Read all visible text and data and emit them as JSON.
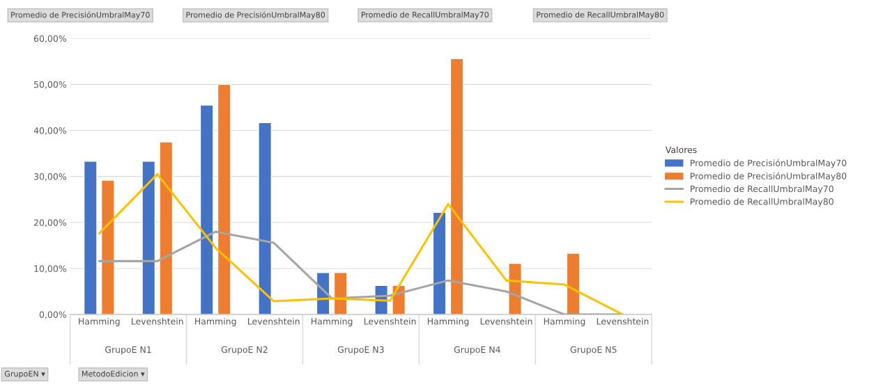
{
  "chart_data": {
    "type": "bar",
    "categories": [
      "Hamming",
      "Levenshtein",
      "Hamming",
      "Levenshtein",
      "Hamming",
      "Levenshtein",
      "Hamming",
      "Levenshtein",
      "Hamming",
      "Levenshtein"
    ],
    "series": [
      {
        "name": "Promedio de PrecisiónUmbralMay70",
        "color": "#4472c4",
        "values": [
          33.3,
          33.3,
          45.5,
          41.7,
          9.1,
          6.3,
          22.2,
          null,
          null,
          null
        ]
      },
      {
        "name": "Promedio de PrecisiónUmbralMay80",
        "color": "#ed7d31",
        "values": [
          29.2,
          37.5,
          50.0,
          null,
          9.1,
          6.3,
          55.6,
          11.1,
          13.3,
          null
        ]
      },
      {
        "name": "Promedio de RecallUmbralMay70",
        "color": "#a5a5a5",
        "type": "line",
        "values": [
          11.6,
          11.6,
          18.0,
          15.6,
          3.5,
          4.1,
          7.4,
          5.0,
          0,
          0
        ]
      },
      {
        "name": "Promedio de RecallUmbralMay80",
        "color": "#ffc000",
        "type": "line",
        "values": [
          17.6,
          30.5,
          14.5,
          2.9,
          3.5,
          3.0,
          24.0,
          7.4,
          6.5,
          0
        ]
      }
    ],
    "ylim": [
      0,
      60
    ],
    "yticks": [
      {
        "value": 0,
        "label": "0,00%"
      },
      {
        "value": 10,
        "label": "10,00%"
      },
      {
        "value": 20,
        "label": "20,00%"
      },
      {
        "value": 30,
        "label": "30,00%"
      },
      {
        "value": 40,
        "label": "40,00%"
      },
      {
        "value": 50,
        "label": "50,00%"
      },
      {
        "value": 60,
        "label": "60,00%"
      }
    ],
    "grid": "y",
    "legend": "right",
    "legend_title": "Valores",
    "annotations": [
      "Promedio de PrecisiónUmbralMay70",
      "Promedio de PrecisiónUmbralMay80",
      "Promedio de RecallUmbralMay70",
      "Promedio de RecallUmbralMay80",
      "GrupoE N1",
      "GrupoE N2",
      "GrupoE N3",
      "GrupoE N4",
      "GrupoE N5",
      "GrupoEN ▾",
      "MetodoEdicion ▾"
    ]
  }
}
